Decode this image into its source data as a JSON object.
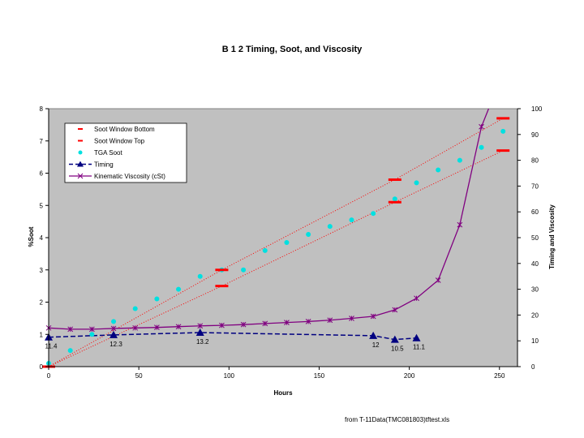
{
  "chart_data": {
    "type": "line",
    "title": "B 1 2 Timing, Soot, and Viscosity",
    "xlabel": "Hours",
    "ylabel": "%Soot",
    "y2label": "Timing and Viscosity",
    "xlim": [
      0,
      260
    ],
    "ylim": [
      0,
      8
    ],
    "y2lim": [
      0,
      100
    ],
    "xticks": [
      0,
      50,
      100,
      150,
      200,
      250
    ],
    "yticks": [
      0,
      1,
      2,
      3,
      4,
      5,
      6,
      7,
      8
    ],
    "y2ticks": [
      0,
      10,
      20,
      30,
      40,
      50,
      60,
      70,
      80,
      90,
      100
    ],
    "grid": false,
    "plot_background": "#c0c0c0",
    "legend_position": "top-left",
    "series": [
      {
        "name": "Soot Window Bottom",
        "axis": "left",
        "color": "#ff0000",
        "marker": "dash",
        "x": [
          0,
          96,
          192,
          252
        ],
        "y": [
          0,
          2.5,
          5.1,
          6.7
        ]
      },
      {
        "name": "Soot Window Top",
        "axis": "left",
        "color": "#ff0000",
        "marker": "dash",
        "x": [
          0,
          96,
          192,
          252
        ],
        "y": [
          0,
          3.0,
          5.8,
          7.7
        ]
      },
      {
        "name": "TGA Soot",
        "axis": "left",
        "color": "#00e0e0",
        "marker": "circle",
        "x": [
          0,
          12,
          24,
          36,
          48,
          60,
          72,
          84,
          96,
          108,
          120,
          132,
          144,
          156,
          168,
          180,
          192,
          204,
          216,
          228,
          240,
          252
        ],
        "y": [
          0.1,
          0.5,
          1.0,
          1.4,
          1.8,
          2.1,
          2.4,
          2.8,
          3.0,
          3.0,
          3.6,
          3.85,
          4.1,
          4.35,
          4.55,
          4.75,
          5.2,
          5.7,
          6.1,
          6.4,
          6.8,
          7.3
        ]
      },
      {
        "name": "Timing",
        "axis": "right",
        "color": "#000080",
        "marker": "triangle",
        "dashed": true,
        "x": [
          0,
          36,
          84,
          180,
          192,
          204
        ],
        "y": [
          11.4,
          12.3,
          13.2,
          12,
          10.5,
          11.1
        ],
        "labels": [
          "11.4",
          "12.3",
          "13.2",
          "12",
          "10.5",
          "11.1"
        ]
      },
      {
        "name": "Kinematic Viscosity (cSt)",
        "axis": "right",
        "color": "#800080",
        "marker": "star",
        "x": [
          0,
          12,
          24,
          36,
          48,
          60,
          72,
          84,
          96,
          108,
          120,
          132,
          144,
          156,
          168,
          180,
          192,
          204,
          216,
          228,
          240,
          244
        ],
        "y": [
          15,
          14.5,
          14.5,
          14.8,
          15,
          15.2,
          15.5,
          15.8,
          16,
          16.3,
          16.7,
          17.1,
          17.5,
          18,
          18.7,
          19.5,
          22,
          26.5,
          33.5,
          55,
          93,
          100
        ]
      }
    ],
    "footer": "from T-11Data(TMC081803)tftest.xls"
  }
}
